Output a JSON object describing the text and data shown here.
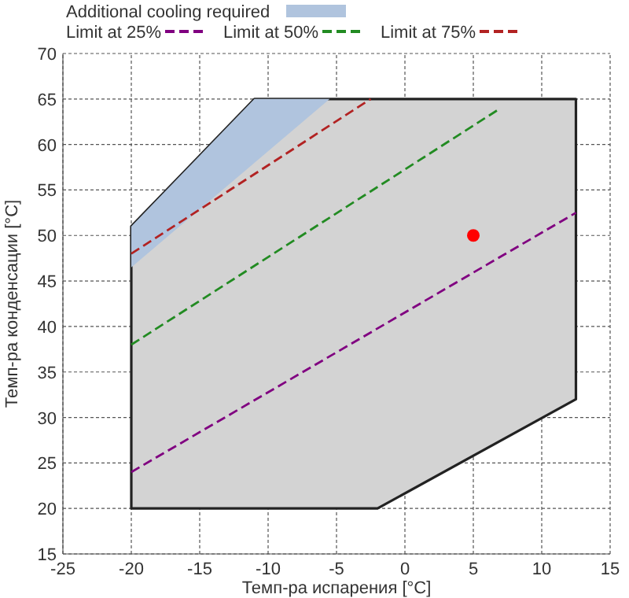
{
  "chart_data": {
    "type": "line",
    "xlabel": "Темп-ра испарения [°C]",
    "ylabel": "Темп-ра конденсации [°C]",
    "xlim": [
      -25,
      15
    ],
    "ylim": [
      15,
      70
    ],
    "xticks": [
      -25,
      -20,
      -15,
      -10,
      -5,
      0,
      5,
      10,
      15
    ],
    "yticks": [
      15,
      20,
      25,
      30,
      35,
      40,
      45,
      50,
      55,
      60,
      65,
      70
    ],
    "grid": true,
    "legend": "top",
    "series": [
      {
        "type": "area",
        "color": "#d3d3d3",
        "x": [
          -20,
          -2,
          12.5,
          12.5,
          -11,
          -20
        ],
        "values": [
          20,
          20,
          32,
          65,
          65,
          51
        ]
      },
      {
        "type": "area",
        "name": "Additional cooling required",
        "color": "#b0c4de",
        "x": [
          -20,
          -11,
          -5.5,
          -20
        ],
        "values": [
          51,
          65,
          65,
          46.5
        ]
      },
      {
        "name": "Limit at 25%",
        "color": "#800080",
        "line_style": "dashed",
        "x": [
          -20,
          12.5
        ],
        "values": [
          24,
          52.5
        ]
      },
      {
        "name": "Limit at 50%",
        "color": "#228b22",
        "line_style": "dashed",
        "x": [
          -20,
          7
        ],
        "values": [
          38,
          64
        ]
      },
      {
        "name": "Limit at 75%",
        "color": "#b22222",
        "line_style": "dashed",
        "x": [
          -20,
          -2.5
        ],
        "values": [
          48,
          65
        ]
      },
      {
        "type": "scatter",
        "color": "#ff0000",
        "marker": "circle",
        "x": [
          5
        ],
        "values": [
          50
        ]
      }
    ]
  }
}
